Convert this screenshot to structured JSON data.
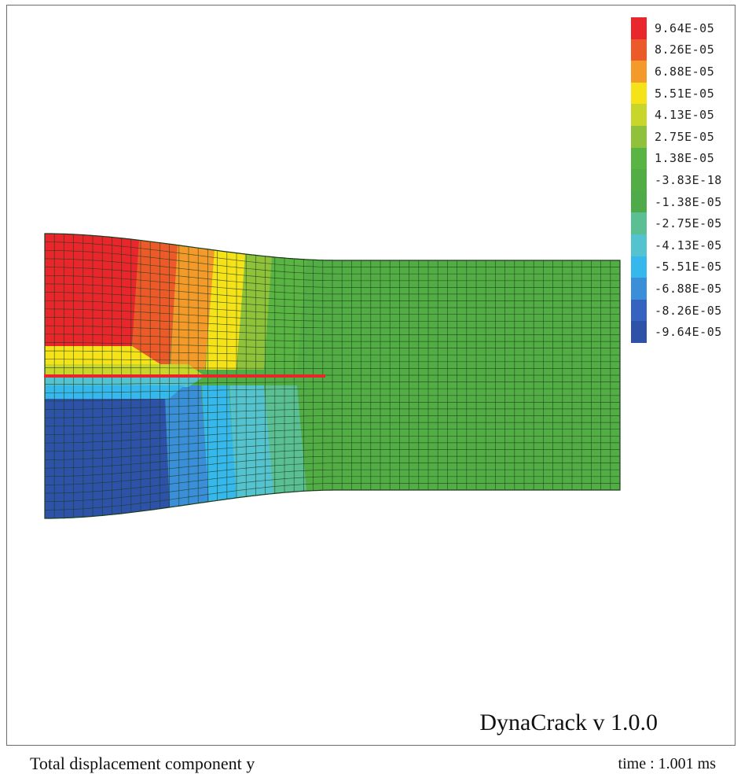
{
  "app": {
    "brand": "DynaCrack v 1.0.0",
    "caption": "Total displacement component y",
    "time": "time : 1.001 ms"
  },
  "legend": {
    "entries": [
      {
        "label": "9.64E-05",
        "color": "#e8262b"
      },
      {
        "label": "8.26E-05",
        "color": "#ec5a2a"
      },
      {
        "label": "6.88E-05",
        "color": "#f39a2a"
      },
      {
        "label": "5.51E-05",
        "color": "#f6e218"
      },
      {
        "label": "4.13E-05",
        "color": "#c8d62c"
      },
      {
        "label": "2.75E-05",
        "color": "#8fc23a"
      },
      {
        "label": "1.38E-05",
        "color": "#59b443"
      },
      {
        "label": "-3.83E-18",
        "color": "#52ad45"
      },
      {
        "label": "-1.38E-05",
        "color": "#4fab4a"
      },
      {
        "label": "-2.75E-05",
        "color": "#5bbf94"
      },
      {
        "label": "-4.13E-05",
        "color": "#55c3cf"
      },
      {
        "label": "-5.51E-05",
        "color": "#36b8ec"
      },
      {
        "label": "-6.88E-05",
        "color": "#3a8fd8"
      },
      {
        "label": "-8.26E-05",
        "color": "#3662c0"
      },
      {
        "label": "-9.64E-05",
        "color": "#2d52a8"
      }
    ]
  },
  "colors": {
    "crack": "#e8262b",
    "mesh_line": "#1b3b1b"
  }
}
